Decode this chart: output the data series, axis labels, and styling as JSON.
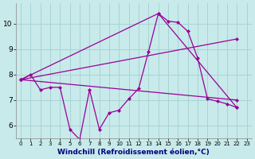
{
  "background_color": "#c8eaea",
  "line_color": "#990099",
  "marker": "D",
  "markersize": 2.0,
  "linewidth": 0.9,
  "xlim": [
    -0.5,
    23.5
  ],
  "ylim": [
    5.5,
    10.8
  ],
  "xlabel": "Windchill (Refroidissement éolien,°C)",
  "xlabel_fontsize": 6.5,
  "xtick_fontsize": 5.0,
  "ytick_fontsize": 6.5,
  "grid_color": "#a8d4d4",
  "line1_x": [
    0,
    1,
    2,
    3,
    4,
    5,
    6,
    7,
    8,
    9,
    10,
    11,
    12,
    13,
    14,
    15,
    16,
    17,
    18,
    19,
    20,
    21,
    22
  ],
  "line1_y": [
    7.8,
    8.0,
    7.4,
    7.5,
    7.5,
    5.85,
    5.45,
    7.4,
    5.85,
    6.5,
    6.6,
    7.05,
    7.45,
    8.9,
    10.4,
    10.1,
    10.05,
    9.7,
    8.65,
    7.05,
    6.95,
    6.85,
    6.7
  ],
  "line2_x": [
    0,
    22
  ],
  "line2_y": [
    7.8,
    9.4
  ],
  "line3_x": [
    0,
    14,
    22
  ],
  "line3_y": [
    7.8,
    10.4,
    6.7
  ],
  "line4_x": [
    0,
    22
  ],
  "line4_y": [
    7.8,
    7.0
  ],
  "yticks": [
    6,
    7,
    8,
    9,
    10
  ],
  "ytick_labels": [
    "6",
    "7",
    "8",
    "9",
    "10"
  ]
}
